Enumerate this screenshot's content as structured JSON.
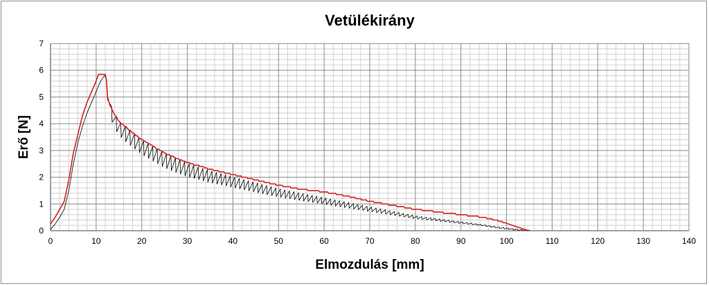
{
  "chart_data": {
    "type": "line",
    "title": "Vetülékirány",
    "xlabel": "Elmozdulás [mm]",
    "ylabel": "Erő [N]",
    "xlim": [
      0,
      140
    ],
    "ylim": [
      0,
      7
    ],
    "xticks": [
      0,
      10,
      20,
      30,
      40,
      50,
      60,
      70,
      80,
      90,
      100,
      110,
      120,
      130,
      140
    ],
    "yticks": [
      0,
      1,
      2,
      3,
      4,
      5,
      6,
      7
    ],
    "minor_grid": true,
    "major_grid": true,
    "legend": "none",
    "series": [
      {
        "color": "#d42020",
        "role": "envelope",
        "x": [
          0,
          1,
          2,
          3,
          4,
          5,
          6,
          7,
          8,
          9,
          10,
          10.5,
          12,
          12.3,
          12.5,
          13,
          14,
          15,
          17,
          20,
          25,
          30,
          35,
          40,
          45,
          50,
          55,
          60,
          65,
          70,
          75,
          80,
          85,
          90,
          95,
          98,
          100,
          102,
          104,
          105
        ],
        "y": [
          0.25,
          0.5,
          0.8,
          1.1,
          1.9,
          2.9,
          3.6,
          4.3,
          4.8,
          5.2,
          5.6,
          5.85,
          5.85,
          5.6,
          5.0,
          4.7,
          4.35,
          4.1,
          3.8,
          3.4,
          2.9,
          2.55,
          2.3,
          2.1,
          1.9,
          1.7,
          1.55,
          1.45,
          1.3,
          1.1,
          0.95,
          0.8,
          0.7,
          0.6,
          0.5,
          0.38,
          0.28,
          0.16,
          0.05,
          0.0
        ]
      },
      {
        "color": "#000000",
        "role": "sawtooth",
        "x": [
          0,
          1,
          2,
          3,
          4,
          5,
          6,
          7,
          8,
          9,
          10,
          11,
          11.8,
          12.2,
          12.5,
          13,
          14,
          15,
          17,
          20,
          25,
          30,
          35,
          40,
          45,
          50,
          55,
          60,
          65,
          70,
          75,
          80,
          85,
          90,
          95,
          98,
          100,
          102,
          104,
          105
        ],
        "y": [
          0.05,
          0.25,
          0.5,
          0.8,
          1.5,
          2.5,
          3.3,
          3.9,
          4.4,
          4.8,
          5.2,
          5.6,
          5.8,
          5.7,
          4.9,
          4.5,
          4.1,
          3.8,
          3.5,
          3.1,
          2.6,
          2.25,
          2.0,
          1.8,
          1.6,
          1.4,
          1.25,
          1.1,
          0.95,
          0.8,
          0.65,
          0.5,
          0.4,
          0.3,
          0.2,
          0.12,
          0.08,
          0.04,
          0.01,
          0.0
        ],
        "oscillation_amplitude": 0.55,
        "oscillation_period": 1.0,
        "oscillation_start": 12.5
      }
    ]
  }
}
